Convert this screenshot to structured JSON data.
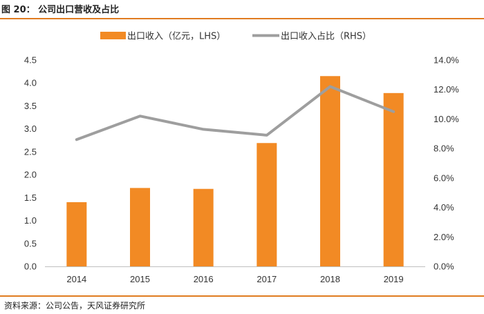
{
  "figure": {
    "title": "图 20：  公司出口营收及占比",
    "source": "资料来源：公司公告，天风证券研究所"
  },
  "colors": {
    "bar": "#f28a24",
    "line": "#9e9e9e",
    "accent_rule": "#e07b1f",
    "axis": "#bfbfbf"
  },
  "chart_data": {
    "type": "bar",
    "title": "公司出口营收及占比",
    "categories": [
      "2014",
      "2015",
      "2016",
      "2017",
      "2018",
      "2019"
    ],
    "series": [
      {
        "name": "出口收入（亿元，LHS）",
        "type": "bar",
        "axis": "left",
        "values": [
          1.4,
          1.71,
          1.69,
          2.69,
          4.15,
          3.78
        ]
      },
      {
        "name": "出口收入占比（RHS）",
        "type": "line",
        "axis": "right",
        "values": [
          8.6,
          10.2,
          9.3,
          8.9,
          12.2,
          10.5
        ]
      }
    ],
    "y_left": {
      "lim": [
        0,
        4.5
      ],
      "ticks": [
        "0.0",
        "0.5",
        "1.0",
        "1.5",
        "2.0",
        "2.5",
        "3.0",
        "3.5",
        "4.0",
        "4.5"
      ]
    },
    "y_right": {
      "lim": [
        0,
        14
      ],
      "unit": "%",
      "ticks": [
        "0.0%",
        "2.0%",
        "4.0%",
        "6.0%",
        "8.0%",
        "10.0%",
        "12.0%",
        "14.0%"
      ]
    },
    "legend": {
      "position": "top"
    },
    "grid": false
  }
}
